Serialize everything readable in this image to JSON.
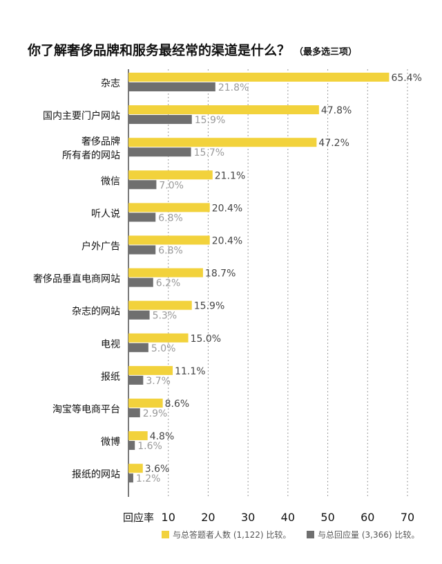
{
  "chart_data": {
    "type": "bar",
    "orientation": "horizontal",
    "title": "你了解奢侈品牌和服务最经常的渠道是什么？",
    "subtitle": "（最多选三项）",
    "xlabel": "回应率",
    "xlim": [
      0,
      70
    ],
    "xticks": [
      "10",
      "20",
      "30",
      "40",
      "50",
      "60",
      "70"
    ],
    "grid": "vertical dashed",
    "legend_position": "bottom-right",
    "categories": [
      "杂志",
      "国内主要门户网站",
      "奢侈品牌\n所有者的网站",
      "微信",
      "听人说",
      "户外广告",
      "奢侈品垂直电商网站",
      "杂志的网站",
      "电视",
      "报纸",
      "淘宝等电商平台",
      "微博",
      "报纸的网站"
    ],
    "series": [
      {
        "name": "与总答题者人数 (1,122) 比较。",
        "color": "#f2d23c",
        "values": [
          65.4,
          47.8,
          47.2,
          21.1,
          20.4,
          20.4,
          18.7,
          15.9,
          15.0,
          11.1,
          8.6,
          4.8,
          3.6
        ],
        "labels": [
          "65.4%",
          "47.8%",
          "47.2%",
          "21.1%",
          "20.4%",
          "20.4%",
          "18.7%",
          "15.9%",
          "15.0%",
          "11.1%",
          "8.6%",
          "4.8%",
          "3.6%"
        ]
      },
      {
        "name": "与总回应量 (3,366) 比较。",
        "color": "#6f6f6f",
        "values": [
          21.8,
          15.9,
          15.7,
          7.0,
          6.8,
          6.8,
          6.2,
          5.3,
          5.0,
          3.7,
          2.9,
          1.6,
          1.2
        ],
        "labels": [
          "21.8%",
          "15.9%",
          "15.7%",
          "7.0%",
          "6.8%",
          "6.8%",
          "6.2%",
          "5.3%",
          "5.0%",
          "3.7%",
          "2.9%",
          "1.6%",
          "1.2%"
        ]
      }
    ]
  }
}
